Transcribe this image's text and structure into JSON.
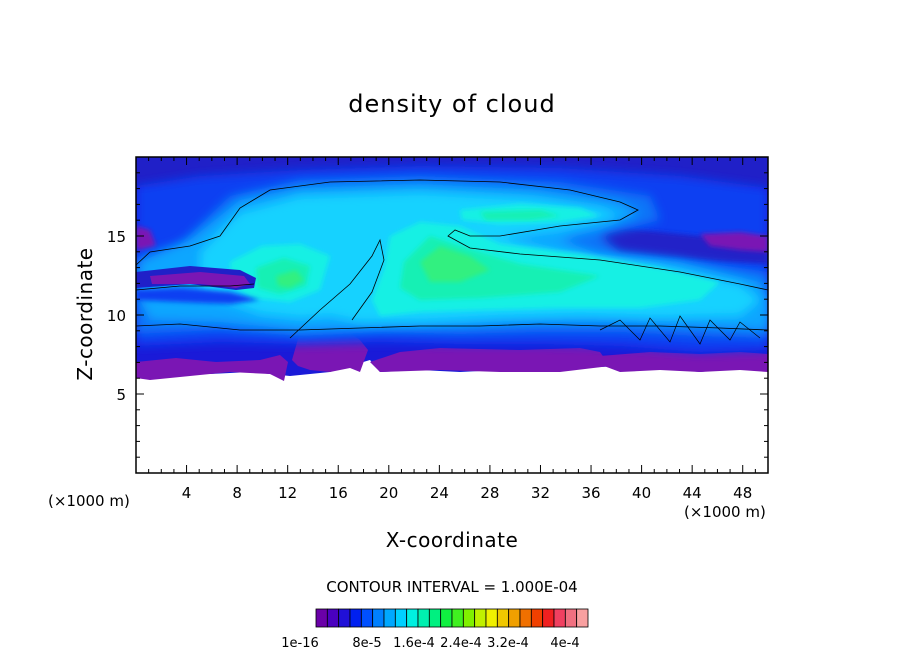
{
  "chart_data": {
    "type": "heatmap",
    "title": "density of cloud",
    "xlabel": "X-coordinate",
    "ylabel": "Z-coordinate",
    "x_unit_left": "(×1000 m)",
    "x_unit_right": "(×1000 m)",
    "xlim": [
      0,
      50
    ],
    "ylim": [
      0,
      20
    ],
    "x_ticks": [
      "4",
      "8",
      "12",
      "16",
      "20",
      "24",
      "28",
      "32",
      "36",
      "40",
      "44",
      "48"
    ],
    "y_ticks": [
      "5",
      "10",
      "15"
    ],
    "contour_interval_text": "CONTOUR INTERVAL = 1.000E-04",
    "colorbar": {
      "labels": [
        "1e-16",
        "8e-5",
        "1.6e-4",
        "2.4e-4",
        "3.2e-4",
        "4e-4"
      ],
      "colors": [
        "#6a00a8",
        "#4a00c0",
        "#2010d8",
        "#0020f0",
        "#0050ff",
        "#0080ff",
        "#00a8ff",
        "#00d0ff",
        "#00f0e0",
        "#00f0b0",
        "#00f080",
        "#10f040",
        "#40f020",
        "#80f000",
        "#c0f000",
        "#f0f000",
        "#f0c800",
        "#f0a000",
        "#f07000",
        "#f04000",
        "#f02020",
        "#f04060",
        "#f07080",
        "#f8a0a0"
      ]
    },
    "field_colors": {
      "purple": "#7a16b4",
      "dark_blue": "#1a1ad8",
      "blue": "#0a40f2",
      "mid_blue": "#0a74f8",
      "sky": "#0aa6ff",
      "cyan": "#14d2ff",
      "aqua": "#14f0e4",
      "teal_green": "#14f0b4",
      "green": "#30f080"
    }
  }
}
